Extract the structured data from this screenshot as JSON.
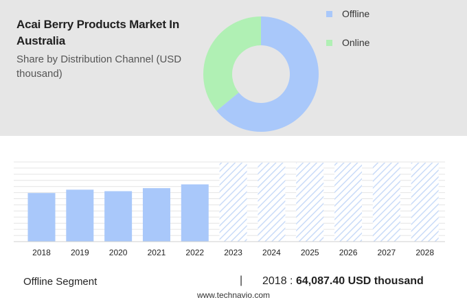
{
  "header": {
    "title": "Acai Berry Products Market In Australia",
    "subtitle": "Share by Distribution Channel (USD thousand)"
  },
  "colors": {
    "offline": "#a9c8fa",
    "online": "#b0f0b4",
    "bar": "#a9c8fa",
    "hatch": "#c9dbf8"
  },
  "chart_data": [
    {
      "type": "pie",
      "variant": "donut",
      "legend_position": "top-right",
      "series": [
        {
          "name": "Offline",
          "value": 64,
          "color": "#a9c8fa"
        },
        {
          "name": "Online",
          "value": 36,
          "color": "#b0f0b4"
        }
      ]
    },
    {
      "type": "bar",
      "categories": [
        "2018",
        "2019",
        "2020",
        "2021",
        "2022",
        "2023",
        "2024",
        "2025",
        "2026",
        "2027",
        "2028"
      ],
      "values": [
        64087.4,
        68500,
        66500,
        70500,
        75500,
        null,
        null,
        null,
        null,
        null,
        null
      ],
      "forecast": [
        "2023",
        "2024",
        "2025",
        "2026",
        "2027",
        "2028"
      ],
      "grid": true,
      "ylim": [
        0,
        105000
      ]
    }
  ],
  "footer": {
    "segment_label": "Offline Segment",
    "separator": "|",
    "year": "2018",
    "colon": " : ",
    "value": "64,087.40 USD thousand",
    "site": "www.technavio.com"
  }
}
